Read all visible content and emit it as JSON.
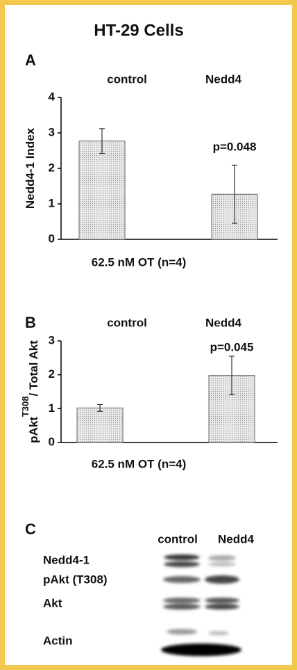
{
  "title": "HT-29 Cells",
  "chart_data": [
    {
      "type": "bar",
      "panel": "A",
      "categories": [
        "control",
        "Nedd4"
      ],
      "values": [
        2.77,
        1.27
      ],
      "errors": [
        0.35,
        0.82
      ],
      "ylim": [
        0,
        4
      ],
      "yticks": [
        0,
        1,
        2,
        3,
        4
      ],
      "y_label": [
        "Nedd4-1 Index"
      ],
      "x_label": "62.5 nM OT (n=4)",
      "annotation": "p=0.048",
      "color": "#e4e4e4",
      "grid": false
    },
    {
      "type": "bar",
      "panel": "B",
      "categories": [
        "control",
        "Nedd4"
      ],
      "values": [
        1.02,
        1.98
      ],
      "errors": [
        0.1,
        0.57
      ],
      "ylim": [
        0,
        3
      ],
      "yticks": [
        0,
        1,
        2,
        3
      ],
      "y_label": [
        "pAkt",
        "T308",
        "/ Total Akt"
      ],
      "x_label": "62.5 nM OT (n=4)",
      "annotation": "p=0.045",
      "color": "#e4e4e4",
      "grid": false
    }
  ],
  "blot": {
    "panel": "C",
    "lanes": [
      "control",
      "Nedd4"
    ],
    "rows": [
      "Nedd4-1",
      "pAkt (T308)",
      "Akt",
      "Actin"
    ]
  }
}
